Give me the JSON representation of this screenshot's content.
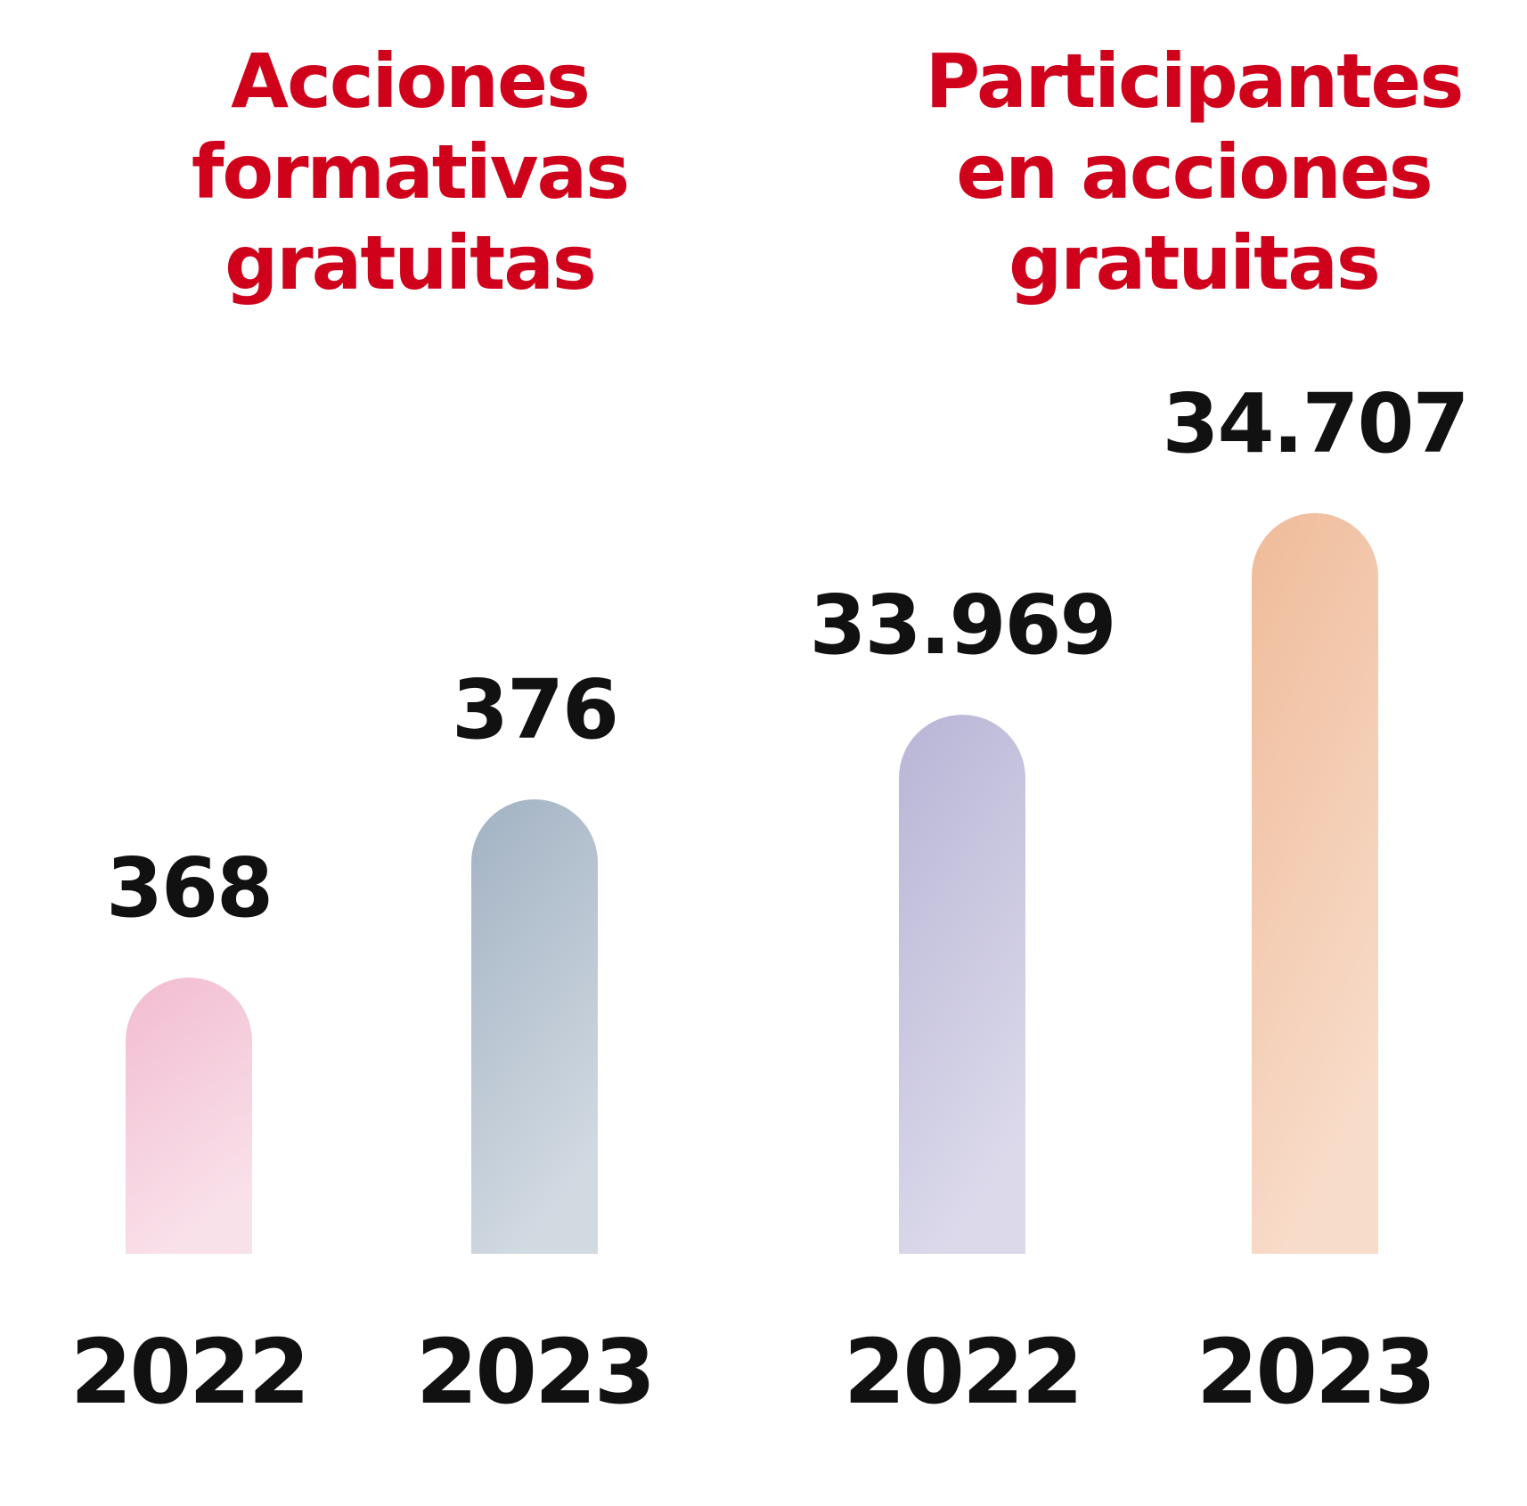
{
  "chart_data": [
    {
      "type": "bar",
      "title_lines": [
        "Acciones",
        "formativas",
        "gratuitas"
      ],
      "categories": [
        "2022",
        "2023"
      ],
      "values": [
        368,
        376
      ],
      "value_labels": [
        "368",
        "376"
      ],
      "colors": [
        [
          "#f2bcd0",
          "#f9e1ea"
        ],
        [
          "#a2b2c3",
          "#d1d9e1"
        ]
      ]
    },
    {
      "type": "bar",
      "title_lines": [
        "Participantes",
        "en acciones",
        "gratuitas"
      ],
      "categories": [
        "2022",
        "2023"
      ],
      "values": [
        33969,
        34707
      ],
      "value_labels": [
        "33.969",
        "34.707"
      ],
      "colors": [
        [
          "#b8b5d6",
          "#dbd9ea"
        ],
        [
          "#efbb99",
          "#f8dcca"
        ]
      ]
    }
  ],
  "colors": {
    "title": "#d0021b",
    "text": "#111111"
  }
}
